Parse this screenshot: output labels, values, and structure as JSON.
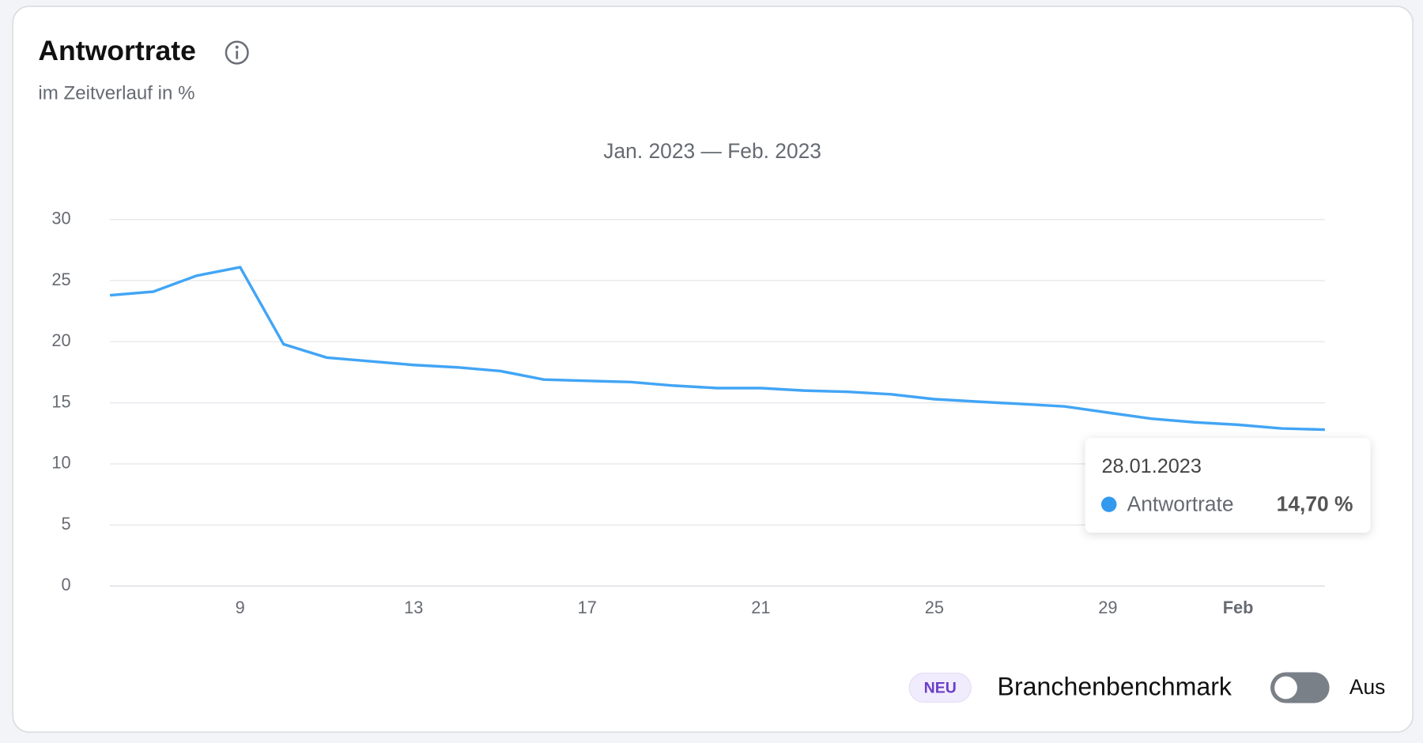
{
  "chart_data": {
    "type": "line",
    "title": "Antwortrate",
    "subtitle": "im Zeitverlauf in %",
    "range_label": "Jan. 2023 — Feb. 2023",
    "categories": [
      null,
      null,
      null,
      "9",
      null,
      null,
      null,
      "13",
      null,
      null,
      null,
      "17",
      null,
      null,
      null,
      "21",
      null,
      null,
      null,
      "25",
      null,
      null,
      null,
      "29",
      null,
      null,
      "Feb",
      null,
      null
    ],
    "series": [
      {
        "name": "Antwortrate",
        "color": "#42a5f5",
        "values": [
          23.8,
          24.1,
          25.4,
          26.1,
          19.8,
          18.7,
          18.4,
          18.1,
          17.9,
          17.6,
          16.9,
          16.8,
          16.7,
          16.4,
          16.2,
          16.2,
          16.0,
          15.9,
          15.7,
          15.3,
          15.1,
          14.9,
          14.7,
          14.2,
          13.7,
          13.4,
          13.2,
          12.9,
          12.8
        ]
      }
    ],
    "ylim": [
      0,
      30
    ],
    "yticks": [
      0,
      5,
      10,
      15,
      20,
      25,
      30
    ],
    "grid": true,
    "tooltip": {
      "date": "28.01.2023",
      "value_label": "14,70 %"
    },
    "controls": {
      "badge": "NEU",
      "toggle_label": "Branchenbenchmark",
      "toggle_state": "Aus"
    }
  }
}
